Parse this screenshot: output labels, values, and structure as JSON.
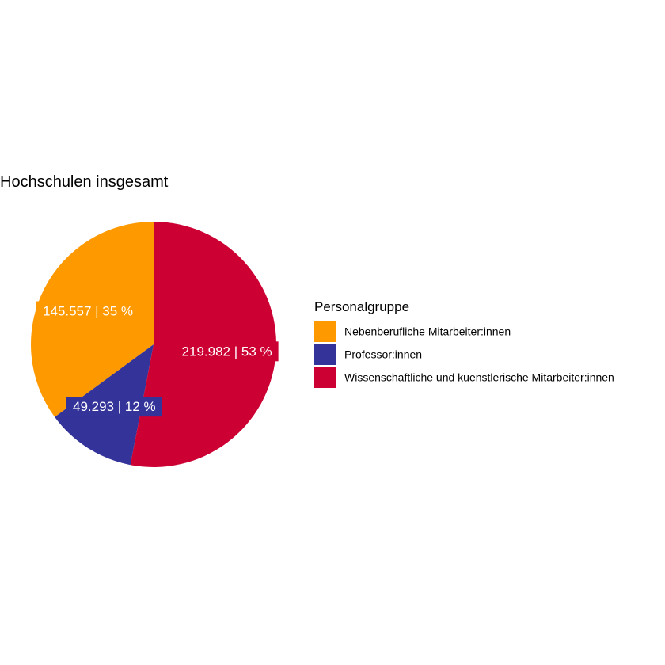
{
  "chart_data": {
    "type": "pie",
    "title": "Hochschulen insgesamt",
    "legend_title": "Personalgruppe",
    "legend_position": "right",
    "slices": [
      {
        "name": "Nebenberufliche Mitarbeiter:innen",
        "value": 145557,
        "percent": 35,
        "label": "145.557 | 35 %",
        "color": "#FF9900"
      },
      {
        "name": "Professor:innen",
        "value": 49293,
        "percent": 12,
        "label": "49.293 | 12 %",
        "color": "#333399"
      },
      {
        "name": "Wissenschaftliche und kuenstlerische Mitarbeiter:innen",
        "value": 219982,
        "percent": 53,
        "label": "219.982 | 53 %",
        "color": "#CC0033"
      }
    ]
  }
}
